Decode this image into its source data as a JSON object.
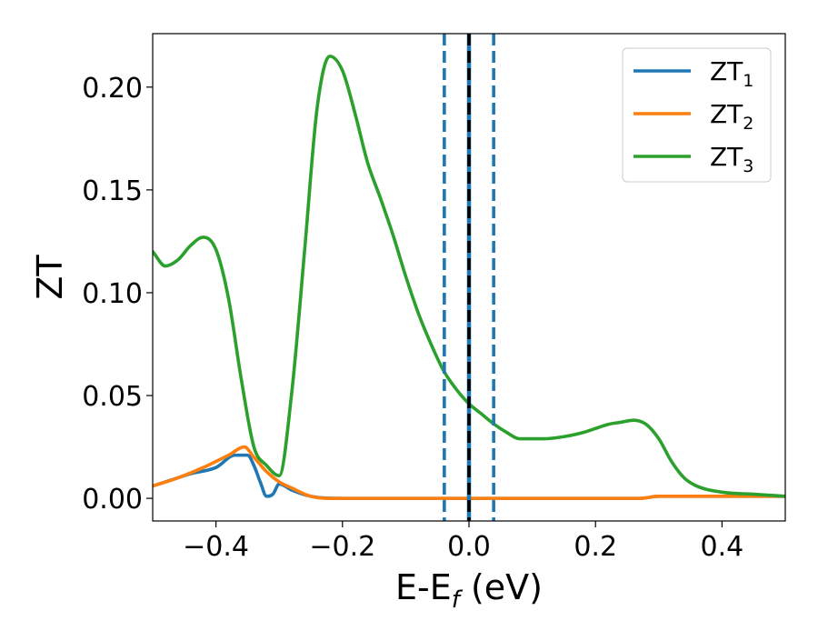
{
  "chart_data": {
    "type": "line",
    "xlabel": "E-E",
    "xlabel_sub": "f",
    "xlabel_unit": " (eV)",
    "ylabel": "ZT",
    "xlim": [
      -0.5,
      0.5
    ],
    "ylim": [
      -0.011,
      0.226
    ],
    "grid": false,
    "legend_position": "top-right",
    "x_ticks": [
      {
        "value": -0.4,
        "label": "−0.4"
      },
      {
        "value": -0.2,
        "label": "−0.2"
      },
      {
        "value": 0.0,
        "label": "0.0"
      },
      {
        "value": 0.2,
        "label": "0.2"
      },
      {
        "value": 0.4,
        "label": "0.4"
      }
    ],
    "y_ticks": [
      {
        "value": 0.0,
        "label": "0.00"
      },
      {
        "value": 0.05,
        "label": "0.05"
      },
      {
        "value": 0.1,
        "label": "0.10"
      },
      {
        "value": 0.15,
        "label": "0.15"
      },
      {
        "value": 0.2,
        "label": "0.20"
      }
    ],
    "vertical_lines": [
      {
        "x": -0.039,
        "style": "dashed",
        "color": "#1f77b4"
      },
      {
        "x": 0.0,
        "style": "solid",
        "color": "#1f77b4"
      },
      {
        "x": 0.0,
        "style": "dashed",
        "color": "#000000"
      },
      {
        "x": 0.039,
        "style": "dashed",
        "color": "#1f77b4"
      }
    ],
    "series": [
      {
        "name": "ZT",
        "sub": "1",
        "color": "#1f77b4",
        "points": [
          [
            -0.5,
            0.006
          ],
          [
            -0.47,
            0.009
          ],
          [
            -0.44,
            0.012
          ],
          [
            -0.4,
            0.015
          ],
          [
            -0.37,
            0.021
          ],
          [
            -0.35,
            0.021
          ],
          [
            -0.34,
            0.016
          ],
          [
            -0.33,
            0.008
          ],
          [
            -0.32,
            0.001
          ],
          [
            -0.31,
            0.002
          ],
          [
            -0.3,
            0.007
          ],
          [
            -0.28,
            0.004
          ],
          [
            -0.25,
            0.001
          ],
          [
            -0.2,
            0.0
          ],
          [
            -0.1,
            0.0
          ],
          [
            0.0,
            0.0
          ],
          [
            0.1,
            0.0
          ],
          [
            0.2,
            0.0
          ],
          [
            0.27,
            0.0
          ],
          [
            0.3,
            0.001
          ],
          [
            0.35,
            0.001
          ],
          [
            0.4,
            0.001
          ],
          [
            0.5,
            0.001
          ]
        ]
      },
      {
        "name": "ZT",
        "sub": "2",
        "color": "#ff7f0e",
        "points": [
          [
            -0.5,
            0.006
          ],
          [
            -0.46,
            0.01
          ],
          [
            -0.42,
            0.015
          ],
          [
            -0.38,
            0.021
          ],
          [
            -0.355,
            0.025
          ],
          [
            -0.34,
            0.02
          ],
          [
            -0.32,
            0.013
          ],
          [
            -0.3,
            0.008
          ],
          [
            -0.28,
            0.005
          ],
          [
            -0.25,
            0.001
          ],
          [
            -0.2,
            0.0
          ],
          [
            -0.1,
            0.0
          ],
          [
            0.0,
            0.0
          ],
          [
            0.1,
            0.0
          ],
          [
            0.2,
            0.0
          ],
          [
            0.27,
            0.0
          ],
          [
            0.3,
            0.001
          ],
          [
            0.35,
            0.001
          ],
          [
            0.4,
            0.001
          ],
          [
            0.5,
            0.001
          ]
        ]
      },
      {
        "name": "ZT",
        "sub": "3",
        "color": "#2ca02c",
        "points": [
          [
            -0.5,
            0.12
          ],
          [
            -0.48,
            0.113
          ],
          [
            -0.46,
            0.116
          ],
          [
            -0.44,
            0.123
          ],
          [
            -0.42,
            0.127
          ],
          [
            -0.4,
            0.121
          ],
          [
            -0.38,
            0.097
          ],
          [
            -0.36,
            0.058
          ],
          [
            -0.34,
            0.025
          ],
          [
            -0.32,
            0.016
          ],
          [
            -0.3,
            0.011
          ],
          [
            -0.28,
            0.052
          ],
          [
            -0.26,
            0.12
          ],
          [
            -0.24,
            0.19
          ],
          [
            -0.22,
            0.215
          ],
          [
            -0.2,
            0.208
          ],
          [
            -0.18,
            0.187
          ],
          [
            -0.16,
            0.163
          ],
          [
            -0.14,
            0.146
          ],
          [
            -0.12,
            0.128
          ],
          [
            -0.1,
            0.108
          ],
          [
            -0.08,
            0.09
          ],
          [
            -0.06,
            0.075
          ],
          [
            -0.04,
            0.062
          ],
          [
            -0.02,
            0.053
          ],
          [
            0.0,
            0.046
          ],
          [
            0.02,
            0.041
          ],
          [
            0.04,
            0.036
          ],
          [
            0.06,
            0.032
          ],
          [
            0.08,
            0.029
          ],
          [
            0.1,
            0.029
          ],
          [
            0.12,
            0.029
          ],
          [
            0.15,
            0.03
          ],
          [
            0.18,
            0.032
          ],
          [
            0.2,
            0.034
          ],
          [
            0.22,
            0.036
          ],
          [
            0.24,
            0.037
          ],
          [
            0.26,
            0.038
          ],
          [
            0.28,
            0.036
          ],
          [
            0.3,
            0.029
          ],
          [
            0.32,
            0.018
          ],
          [
            0.34,
            0.01
          ],
          [
            0.36,
            0.006
          ],
          [
            0.4,
            0.003
          ],
          [
            0.45,
            0.002
          ],
          [
            0.5,
            0.001
          ]
        ]
      }
    ]
  }
}
